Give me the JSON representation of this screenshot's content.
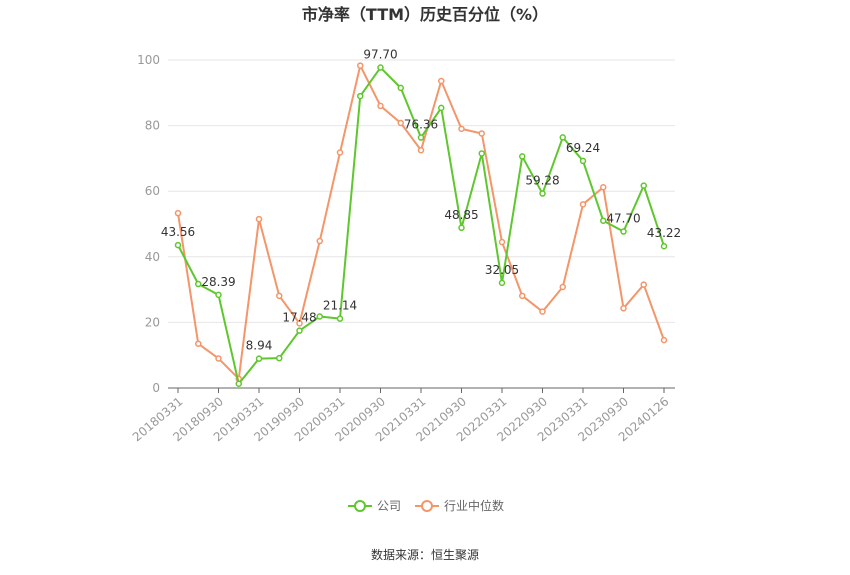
{
  "source_text": "数据来源：恒生聚源",
  "chart_data": {
    "type": "line",
    "title": "市净率（TTM）历史百分位（%）",
    "xlabel": "",
    "ylabel": "",
    "ylim": [
      0,
      100
    ],
    "yticks": [
      0,
      20,
      40,
      60,
      80,
      100
    ],
    "grid": true,
    "legend_position": "bottom-center",
    "tick_labels": [
      "20180331",
      "20180930",
      "20190331",
      "20190930",
      "20200331",
      "20200930",
      "20210331",
      "20210930",
      "20220331",
      "20220930",
      "20230331",
      "20230930",
      "20240126"
    ],
    "tick_index": [
      0,
      2,
      4,
      6,
      8,
      10,
      12,
      14,
      16,
      18,
      20,
      22,
      24
    ],
    "x": [
      "20180331",
      "20180630",
      "20180930",
      "20181231",
      "20190331",
      "20190630",
      "20190930",
      "20191231",
      "20200331",
      "20200630",
      "20200930",
      "20201231",
      "20210331",
      "20210630",
      "20210930",
      "20211231",
      "20220331",
      "20220630",
      "20220930",
      "20221231",
      "20230331",
      "20230630",
      "20230930",
      "20231231",
      "20240126"
    ],
    "series": [
      {
        "name": "公司",
        "color": "#5fc72e",
        "values": [
          43.56,
          31.7,
          28.39,
          1.3,
          8.94,
          9.1,
          17.48,
          21.8,
          21.14,
          89.0,
          97.7,
          91.5,
          76.36,
          85.4,
          48.85,
          71.5,
          32.05,
          70.6,
          59.28,
          76.4,
          69.24,
          51.0,
          47.7,
          61.7,
          43.22
        ],
        "labels": {
          "0": "43.56",
          "2": "28.39",
          "4": "8.94",
          "6": "17.48",
          "8": "21.14",
          "10": "97.70",
          "12": "76.36",
          "14": "48.85",
          "16": "32.05",
          "18": "59.28",
          "20": "69.24",
          "22": "47.70",
          "24": "43.22"
        }
      },
      {
        "name": "行业中位数",
        "color": "#f4956a",
        "values": [
          53.3,
          13.5,
          9.0,
          2.8,
          51.5,
          28.1,
          19.7,
          44.8,
          71.8,
          98.3,
          86.0,
          80.8,
          72.5,
          93.6,
          79.0,
          77.6,
          44.5,
          28.1,
          23.3,
          30.8,
          56.0,
          61.2,
          24.3,
          31.5,
          14.6
        ]
      }
    ]
  }
}
